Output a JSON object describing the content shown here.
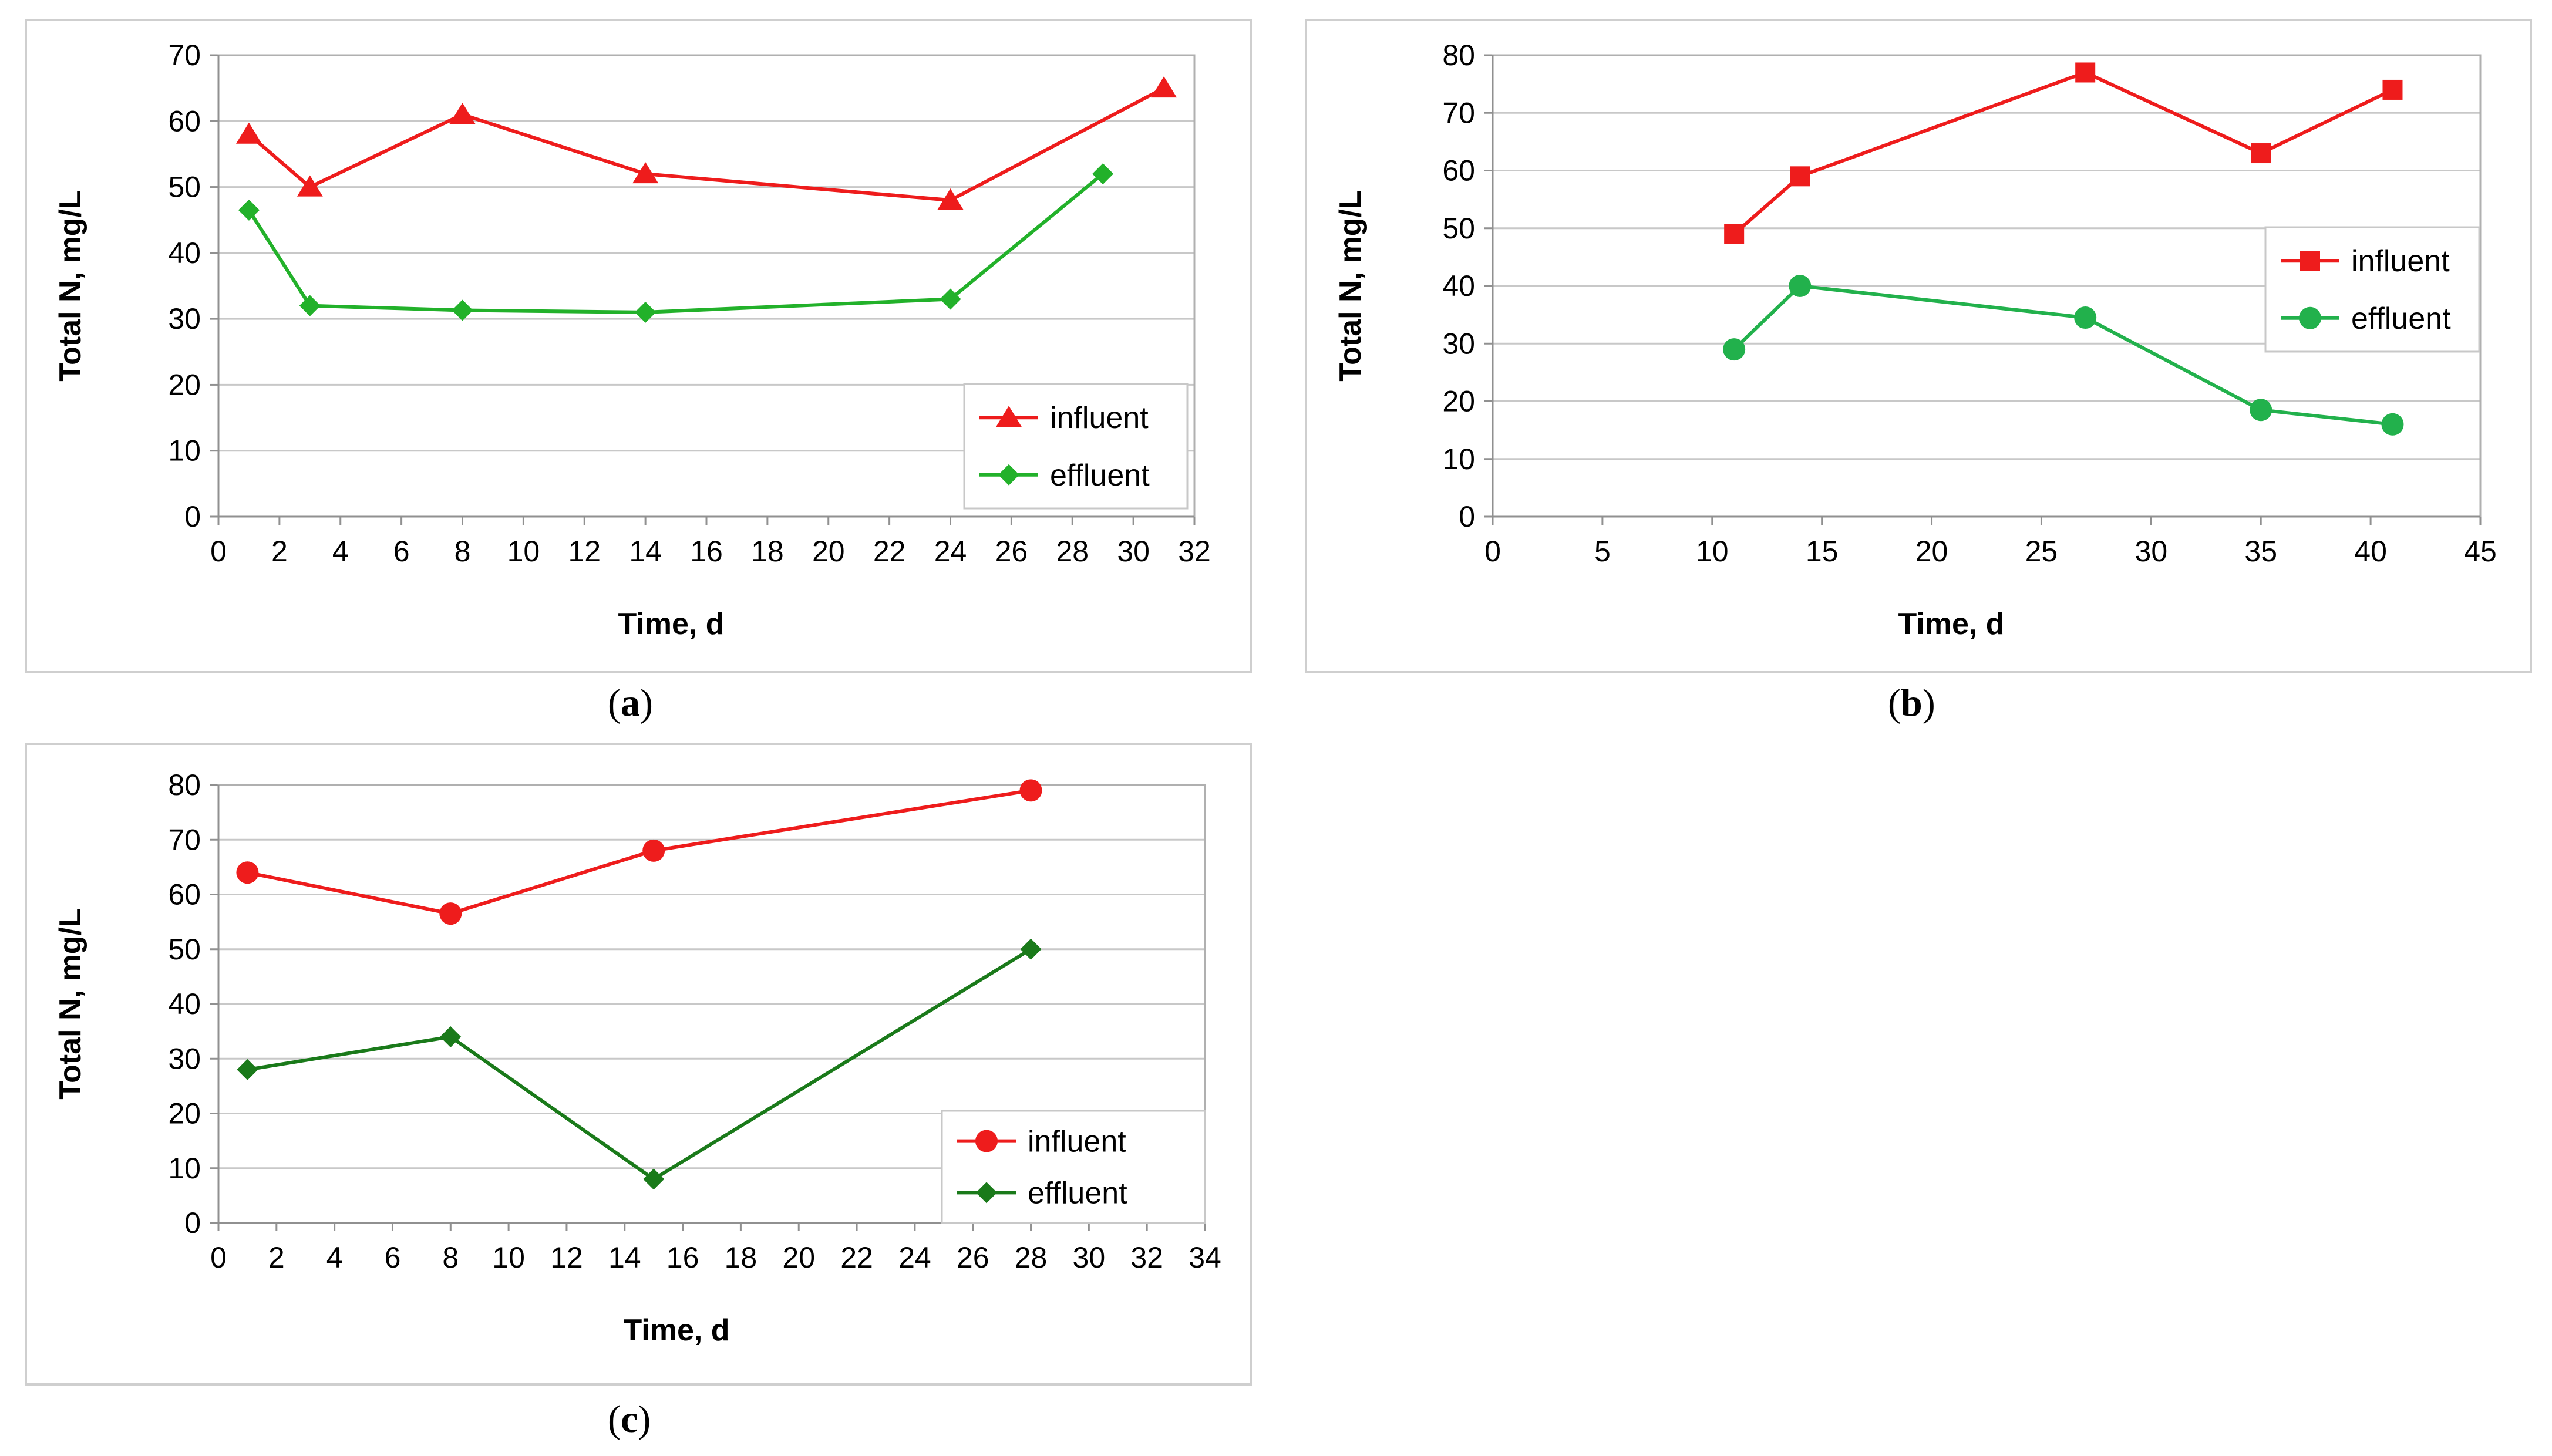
{
  "captions": {
    "a": "a",
    "b": "b",
    "c": "c"
  },
  "chart_data": [
    {
      "id": "a",
      "type": "line",
      "xlabel": "Time, d",
      "ylabel": "Total N, mg/L",
      "xlim": [
        0,
        32
      ],
      "ylim": [
        0,
        70
      ],
      "xticks": [
        0,
        2,
        4,
        6,
        8,
        10,
        12,
        14,
        16,
        18,
        20,
        22,
        24,
        26,
        28,
        30,
        32
      ],
      "yticks": [
        0,
        10,
        20,
        30,
        40,
        50,
        60,
        70
      ],
      "legend_position": "bottom-right",
      "series": [
        {
          "name": "influent",
          "color": "#ee1c1c",
          "marker": "triangle",
          "x": [
            1,
            3,
            8,
            14,
            24,
            31
          ],
          "y": [
            58,
            50,
            61,
            52,
            48,
            65
          ]
        },
        {
          "name": "effluent",
          "color": "#22b12a",
          "marker": "diamond",
          "x": [
            1,
            3,
            8,
            14,
            24,
            29
          ],
          "y": [
            46.5,
            32,
            31.3,
            31,
            33,
            52
          ]
        }
      ]
    },
    {
      "id": "b",
      "type": "line",
      "xlabel": "Time, d",
      "ylabel": "Total N, mg/L",
      "xlim": [
        0,
        45
      ],
      "ylim": [
        0,
        80
      ],
      "xticks": [
        0,
        5,
        10,
        15,
        20,
        25,
        30,
        35,
        40,
        45
      ],
      "yticks": [
        0,
        10,
        20,
        30,
        40,
        50,
        60,
        70,
        80
      ],
      "legend_position": "right",
      "series": [
        {
          "name": "influent",
          "color": "#ee1c1c",
          "marker": "square",
          "x": [
            11,
            14,
            27,
            35,
            41
          ],
          "y": [
            49,
            59,
            77,
            63,
            74
          ]
        },
        {
          "name": "effluent",
          "color": "#22b14c",
          "marker": "circle",
          "x": [
            11,
            14,
            27,
            35,
            41
          ],
          "y": [
            29,
            40,
            34.5,
            18.5,
            16
          ]
        }
      ]
    },
    {
      "id": "c",
      "type": "line",
      "xlabel": "Time, d",
      "ylabel": "Total N, mg/L",
      "xlim": [
        0,
        34
      ],
      "ylim": [
        0,
        80
      ],
      "xticks": [
        0,
        2,
        4,
        6,
        8,
        10,
        12,
        14,
        16,
        18,
        20,
        22,
        24,
        26,
        28,
        30,
        32,
        34
      ],
      "yticks": [
        0,
        10,
        20,
        30,
        40,
        50,
        60,
        70,
        80
      ],
      "legend_position": "bottom-right",
      "series": [
        {
          "name": "influent",
          "color": "#ee1c1c",
          "marker": "circle",
          "x": [
            1,
            8,
            15,
            28
          ],
          "y": [
            64,
            56.5,
            68,
            79
          ]
        },
        {
          "name": "effluent",
          "color": "#1a7a1a",
          "marker": "diamond",
          "x": [
            1,
            8,
            15,
            28
          ],
          "y": [
            28,
            34,
            8,
            50
          ]
        }
      ]
    }
  ]
}
